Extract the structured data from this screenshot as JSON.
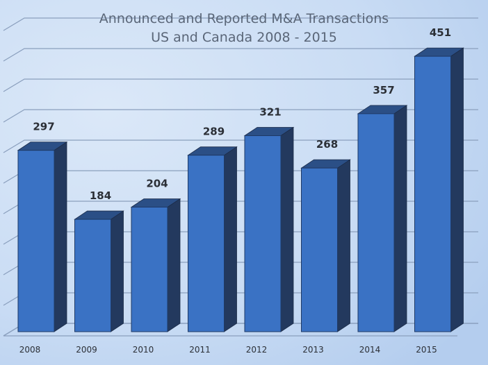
{
  "chart_data": {
    "type": "bar",
    "title": "Announced and Reported M&A Transactions",
    "subtitle": "US and Canada 2008 - 2015",
    "categories": [
      "2008",
      "2009",
      "2010",
      "2011",
      "2012",
      "2013",
      "2014",
      "2015"
    ],
    "values": [
      297,
      184,
      204,
      289,
      321,
      268,
      357,
      451
    ],
    "xlabel": "",
    "ylabel": "",
    "ylim": [
      0,
      500
    ],
    "grid": true,
    "legend": "none",
    "style": "3d-columns",
    "colors": {
      "bar_front": "#3a72c4",
      "bar_side": "#23395e",
      "bar_top": "#2b4f86",
      "background_light": "#dbe8f8",
      "background_dark": "#b4cdee",
      "gridline": "#8a9fbd"
    }
  }
}
